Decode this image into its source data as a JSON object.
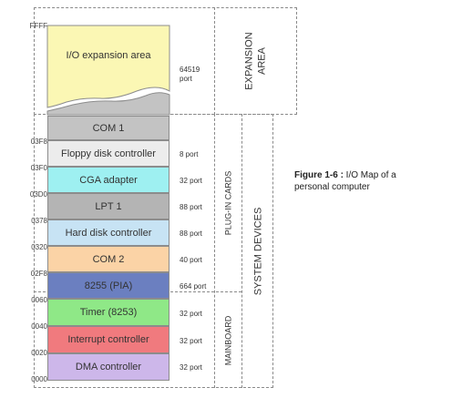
{
  "addresses": {
    "ffff": "FFFF",
    "a03f8": "03F8",
    "a03f0": "03F0",
    "a03d0": "03D0",
    "a0378": "0378",
    "a0320": "0320",
    "a02f8": "02F8",
    "a0060": "0060",
    "a0040": "0040",
    "a0020": "0020",
    "a0000": "0000"
  },
  "segments": {
    "io_expansion": "I/O expansion area",
    "com1": "COM 1",
    "floppy": "Floppy disk controller",
    "cga": "CGA adapter",
    "lpt1": "LPT 1",
    "hdd": "Hard disk controller",
    "com2": "COM 2",
    "pia": "8255 (PIA)",
    "timer": "Timer (8253)",
    "interrupt": "Interrupt controller",
    "dma": "DMA controller"
  },
  "ports": {
    "expansion_value": "64519",
    "expansion_unit": "port",
    "floppy": "8 port",
    "cga": "32 port",
    "lpt1": "88 port",
    "hdd": "88 port",
    "com2": "40 port",
    "pia": "664 port",
    "timer": "32 port",
    "interrupt": "32 port",
    "dma": "32 port"
  },
  "area_labels": {
    "expansion_line1": "EXPANSION",
    "expansion_line2": "AREA",
    "plugin_cards": "PLUG-IN CARDS",
    "mainboard": "MAINBOARD",
    "system_devices": "SYSTEM DEVICES"
  },
  "caption": {
    "label": "Figure 1-6 :",
    "text": " I/O Map of a personal computer"
  },
  "colors": {
    "expansion": "#fbf7b4",
    "com1": "#c3c3c3",
    "floppy": "#ececec",
    "cga": "#9ef0f1",
    "lpt1": "#b4b4b4",
    "hdd": "#c7e3f4",
    "com2": "#fbd3a6",
    "pia": "#6b7fc0",
    "timer": "#8fe887",
    "interrupt": "#f07a7e",
    "dma": "#cdb7ea"
  }
}
